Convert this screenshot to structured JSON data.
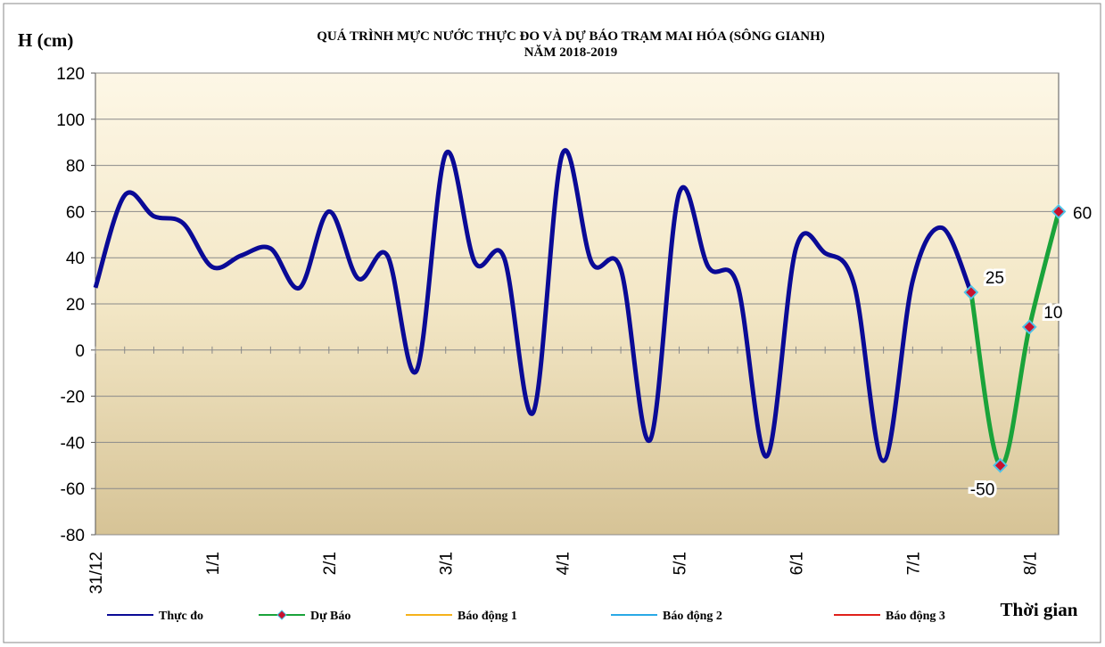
{
  "chart_data": {
    "type": "line",
    "title": [
      "QUÁ TRÌNH MỰC NƯỚC THỰC ĐO VÀ DỰ BÁO TRẠM MAI HÓA (SÔNG GIANH)",
      "NĂM 2018-2019"
    ],
    "y_label": "H (cm)",
    "x_label": "Thời gian",
    "categories": [
      "31/12",
      null,
      null,
      null,
      "1/1",
      null,
      null,
      null,
      "2/1",
      null,
      null,
      null,
      "3/1",
      null,
      null,
      null,
      "4/1",
      null,
      null,
      null,
      "5/1",
      null,
      null,
      null,
      "6/1",
      null,
      null,
      null,
      "7/1",
      null,
      null,
      null,
      "8/1",
      null
    ],
    "series": [
      {
        "name": "Thực đo",
        "color": "#0a0a96",
        "values": [
          27,
          67,
          58,
          55,
          36,
          41,
          44,
          27,
          60,
          31,
          41,
          -9,
          85,
          38,
          40,
          -27,
          85,
          38,
          35,
          -39,
          68,
          36,
          28,
          -46,
          44,
          42,
          28,
          -48,
          30,
          53,
          25,
          null,
          null,
          null
        ]
      },
      {
        "name": "Dự Báo",
        "color": "#1aa33a",
        "marker": "diamond",
        "data_labels": true,
        "values": [
          null,
          null,
          null,
          null,
          null,
          null,
          null,
          null,
          null,
          null,
          null,
          null,
          null,
          null,
          null,
          null,
          null,
          null,
          null,
          null,
          null,
          null,
          null,
          null,
          null,
          null,
          null,
          null,
          null,
          null,
          25,
          -50,
          10,
          60
        ]
      },
      {
        "name": "Báo động 1",
        "color": "#f5b21b"
      },
      {
        "name": "Báo động 2",
        "color": "#29a9e6"
      },
      {
        "name": "Báo động 3",
        "color": "#e0201b"
      }
    ],
    "ylim": [
      -80,
      120
    ],
    "yticks": [
      -80,
      -60,
      -40,
      -20,
      0,
      20,
      40,
      60,
      80,
      100,
      120
    ],
    "grid": true,
    "legend": "bottom"
  }
}
